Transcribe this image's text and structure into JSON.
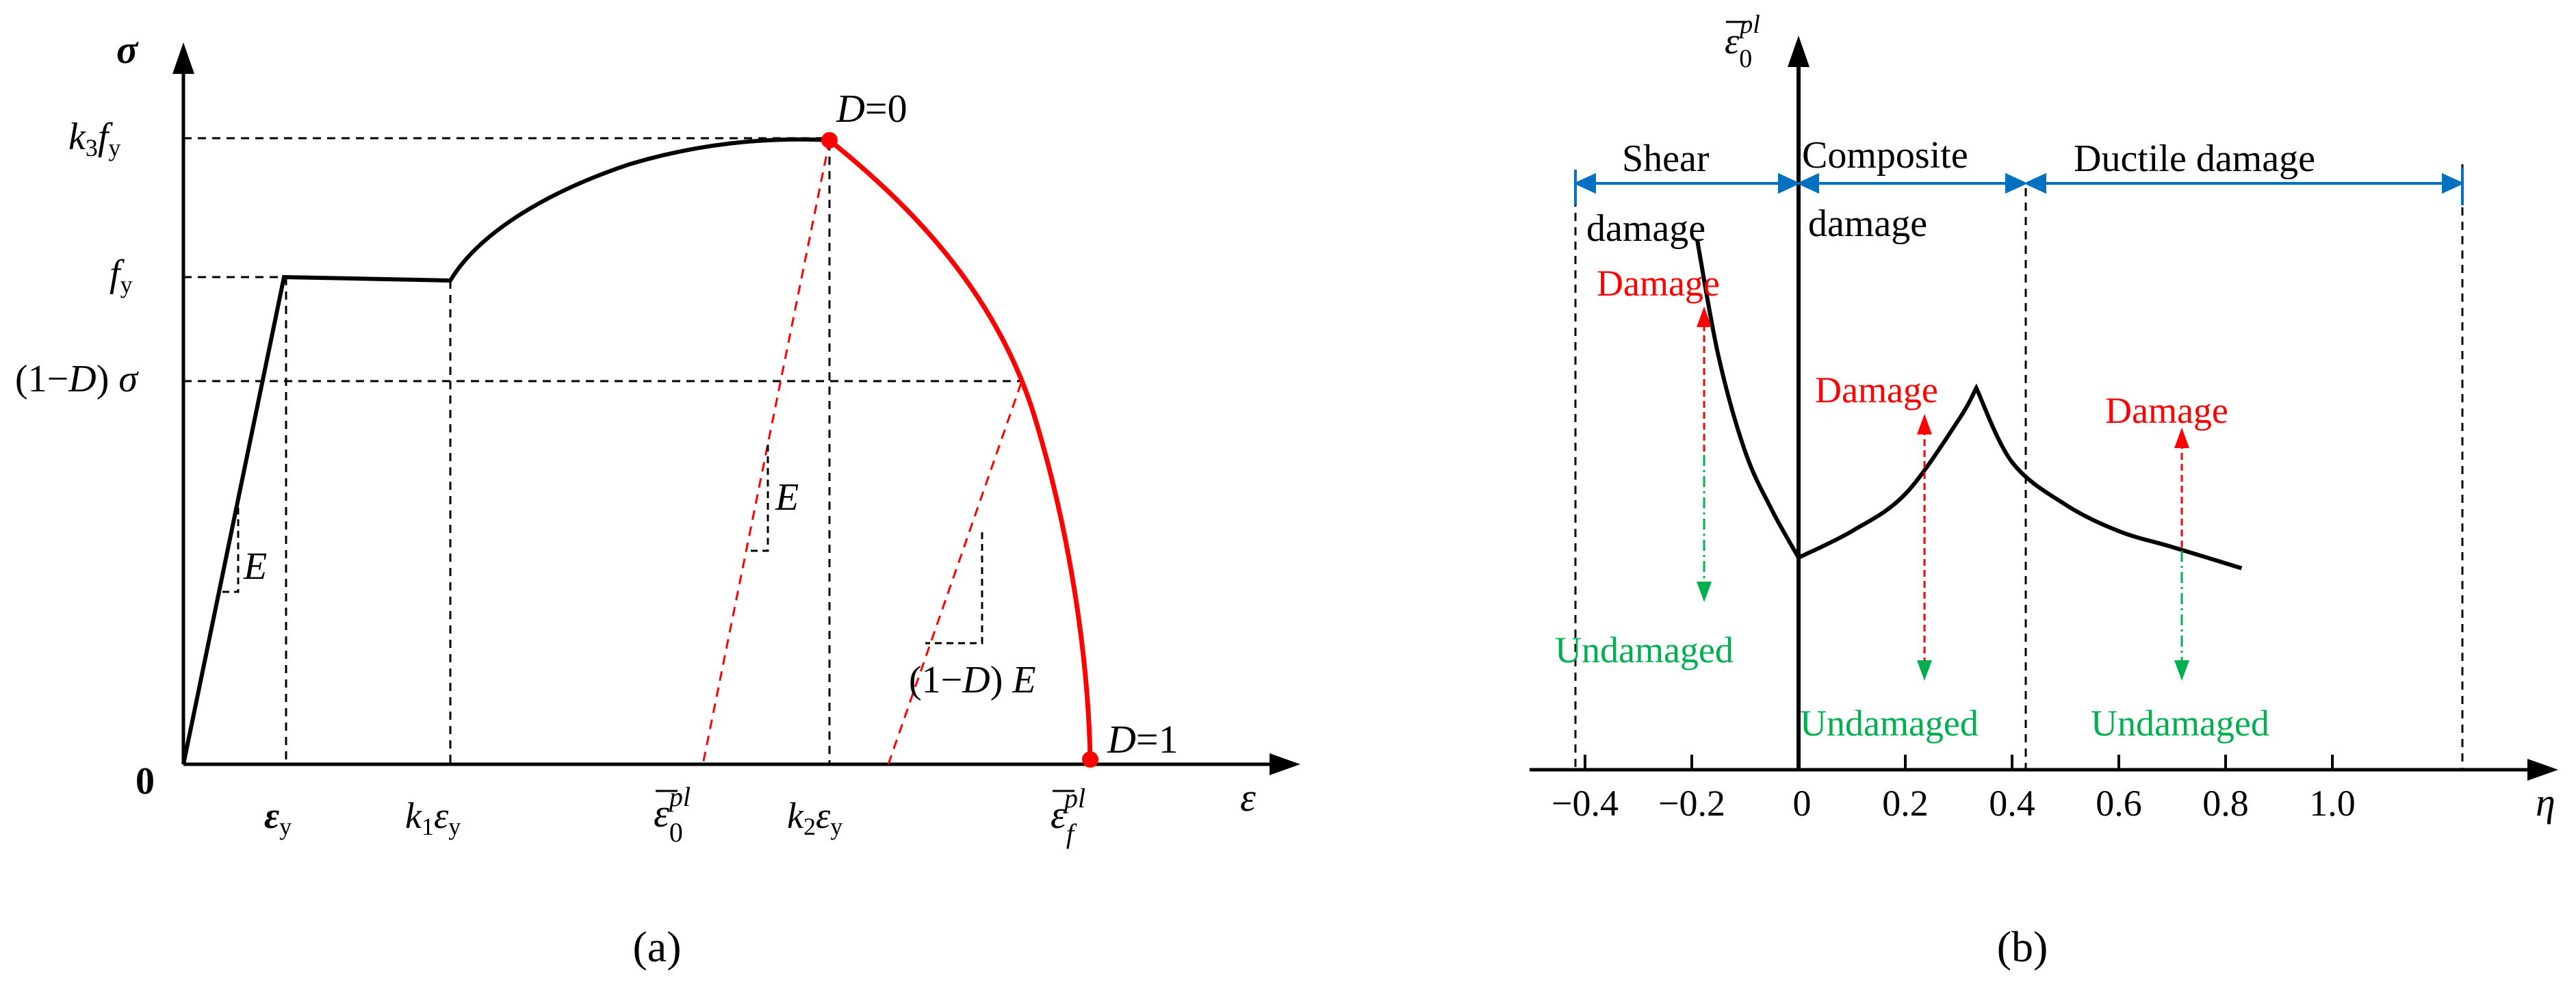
{
  "colors": {
    "curve": "#000000",
    "damage_curve": "#ff0000",
    "damage_label": "#ff0000",
    "undamaged_label": "#00b050",
    "region_bracket": "#0070c0"
  },
  "panel_a": {
    "caption": "(a)",
    "y_axis_symbol": "σ",
    "x_axis_symbol": "ε",
    "origin_label": "0",
    "y_tick_k3": {
      "main": "k",
      "sub": "3",
      "f": "f",
      "fsub": "y"
    },
    "y_tick_fy": {
      "main": "f",
      "sub": "y"
    },
    "y_tick_damaged": {
      "pre": "(1−",
      "D": "D",
      "post": ") ",
      "sigma": "σ"
    },
    "x_tick_ey": {
      "main": "ε",
      "sub": "y"
    },
    "x_tick_k1": {
      "k": "k",
      "sub": "1",
      "e": "ε",
      "esub": "y"
    },
    "x_tick_e0pl": {
      "main": "ε",
      "sub": "0",
      "sup": "pl"
    },
    "x_tick_k2": {
      "k": "k",
      "sub": "2",
      "e": "ε",
      "esub": "y"
    },
    "x_tick_efpl": {
      "main": "ε",
      "sub": "f",
      "sup": "pl"
    },
    "label_D0": {
      "D": "D",
      "rest": "=0"
    },
    "label_D1": {
      "D": "D",
      "rest": "=1"
    },
    "label_E1": "E",
    "label_E2": "E",
    "label_damaged_E": {
      "pre": "(1−",
      "D": "D",
      "post": ") ",
      "E": "E"
    }
  },
  "panel_b": {
    "caption": "(b)",
    "y_axis": {
      "main": "ε",
      "sub": "0",
      "sup": "pl"
    },
    "x_axis_symbol": "η",
    "x_ticks": [
      {
        "v": -0.4,
        "label": "−0.4"
      },
      {
        "v": -0.2,
        "label": "−0.2"
      },
      {
        "v": 0,
        "label": "0"
      },
      {
        "v": 0.2,
        "label": "0.2"
      },
      {
        "v": 0.4,
        "label": "0.4"
      },
      {
        "v": 0.6,
        "label": "0.6"
      },
      {
        "v": 0.8,
        "label": "0.8"
      },
      {
        "v": 1.0,
        "label": "1.0"
      }
    ],
    "regions": {
      "shear_line1": "Shear",
      "shear_line2": "damage",
      "composite_line1": "Composite",
      "composite_line2": "damage",
      "ductile": "Ductile damage"
    },
    "damage_labels": [
      "Damage",
      "Damage",
      "Damage"
    ],
    "undamaged_labels": [
      "Undamaged",
      "Undamaged",
      "Undamaged"
    ],
    "curve_points": [
      [
        -0.19,
        1.0
      ],
      [
        -0.15,
        0.78
      ],
      [
        -0.1,
        0.6
      ],
      [
        -0.05,
        0.49
      ],
      [
        0,
        0.4
      ],
      [
        0.1,
        0.45
      ],
      [
        0.2,
        0.52
      ],
      [
        0.3,
        0.66
      ],
      [
        0.333,
        0.72
      ],
      [
        0.4,
        0.58
      ],
      [
        0.5,
        0.5
      ],
      [
        0.6,
        0.45
      ],
      [
        0.7,
        0.42
      ],
      [
        0.83,
        0.38
      ]
    ]
  }
}
